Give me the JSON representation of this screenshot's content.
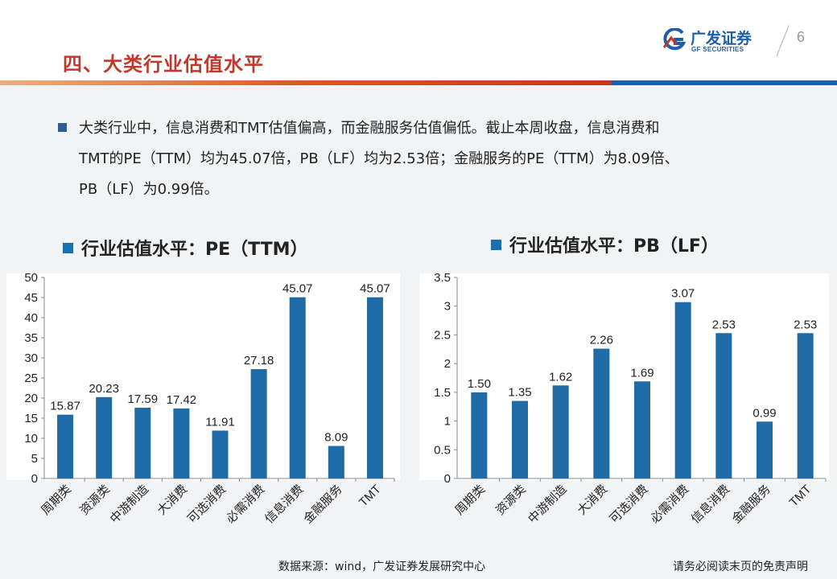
{
  "header": {
    "page_title": "四、大类行业估值水平",
    "logo_cn": "广发证券",
    "logo_en": "GF SECURITIES",
    "page_number": "6"
  },
  "summary": {
    "line1": "大类行业中，信息消费和TMT估值偏高，而金融服务估值偏低。截止本周收盘，信息消费和",
    "line2": "TMT的PE（TTM）均为45.07倍，PB（LF）均为2.53倍；金融服务的PE（TTM）为8.09倍、",
    "line3": "PB（LF）为0.99倍。"
  },
  "colors": {
    "bar": "#1f6ba8",
    "title_red": "#c0392b",
    "brand_blue": "#1d5fa8"
  },
  "chart_data": [
    {
      "type": "bar",
      "title": "行业估值水平：PE（TTM）",
      "categories": [
        "周期类",
        "资源类",
        "中游制造",
        "大消费",
        "可选消费",
        "必需消费",
        "信息消费",
        "金融服务",
        "TMT"
      ],
      "values": [
        15.87,
        20.23,
        17.59,
        17.42,
        11.91,
        27.18,
        45.07,
        8.09,
        45.07
      ],
      "value_labels": [
        "15.87",
        "20.23",
        "17.59",
        "17.42",
        "11.91",
        "27.18",
        "45.07",
        "8.09",
        "45.07"
      ],
      "ylim": [
        0,
        50
      ],
      "yticks": [
        0,
        5,
        10,
        15,
        20,
        25,
        30,
        35,
        40,
        45,
        50
      ],
      "ytick_labels": [
        "0",
        "5",
        "10",
        "15",
        "20",
        "25",
        "30",
        "35",
        "40",
        "45",
        "50"
      ],
      "grid": false,
      "legend": "none"
    },
    {
      "type": "bar",
      "title": "行业估值水平：PB（LF）",
      "categories": [
        "周期类",
        "资源类",
        "中游制造",
        "大消费",
        "可选消费",
        "必需消费",
        "信息消费",
        "金融服务",
        "TMT"
      ],
      "values": [
        1.5,
        1.35,
        1.62,
        2.26,
        1.69,
        3.07,
        2.53,
        0.99,
        2.53
      ],
      "value_labels": [
        "1.50",
        "1.35",
        "1.62",
        "2.26",
        "1.69",
        "3.07",
        "2.53",
        "0.99",
        "2.53"
      ],
      "ylim": [
        0,
        3.5
      ],
      "yticks": [
        0,
        0.5,
        1,
        1.5,
        2,
        2.5,
        3,
        3.5
      ],
      "ytick_labels": [
        "0",
        "0.5",
        "1",
        "1.5",
        "2",
        "2.5",
        "3",
        "3.5"
      ],
      "grid": false,
      "legend": "none"
    }
  ],
  "footer": {
    "source": "数据来源：wind，广发证券发展研究中心",
    "disclaimer": "请务必阅读末页的免责声明"
  }
}
